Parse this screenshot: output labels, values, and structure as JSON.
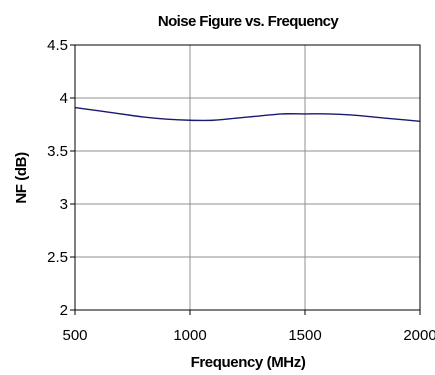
{
  "chart_data": {
    "type": "line",
    "title": "Noise Figure vs. Frequency",
    "xlabel": "Frequency (MHz)",
    "ylabel": "NF (dB)",
    "xlim": [
      500,
      2000
    ],
    "ylim": [
      2,
      4.5
    ],
    "x_ticks": [
      "500",
      "1000",
      "1500",
      "2000"
    ],
    "y_ticks": [
      "2",
      "2.5",
      "3",
      "3.5",
      "4",
      "4.5"
    ],
    "grid": true,
    "legend": "none",
    "series": [
      {
        "color": "#1a1a6e",
        "x": [
          500,
          600,
          700,
          800,
          900,
          1000,
          1100,
          1200,
          1300,
          1400,
          1500,
          1600,
          1700,
          1800,
          1900,
          2000
        ],
        "y": [
          3.91,
          3.88,
          3.85,
          3.82,
          3.8,
          3.79,
          3.79,
          3.81,
          3.83,
          3.85,
          3.85,
          3.85,
          3.84,
          3.82,
          3.8,
          3.78
        ]
      }
    ]
  }
}
